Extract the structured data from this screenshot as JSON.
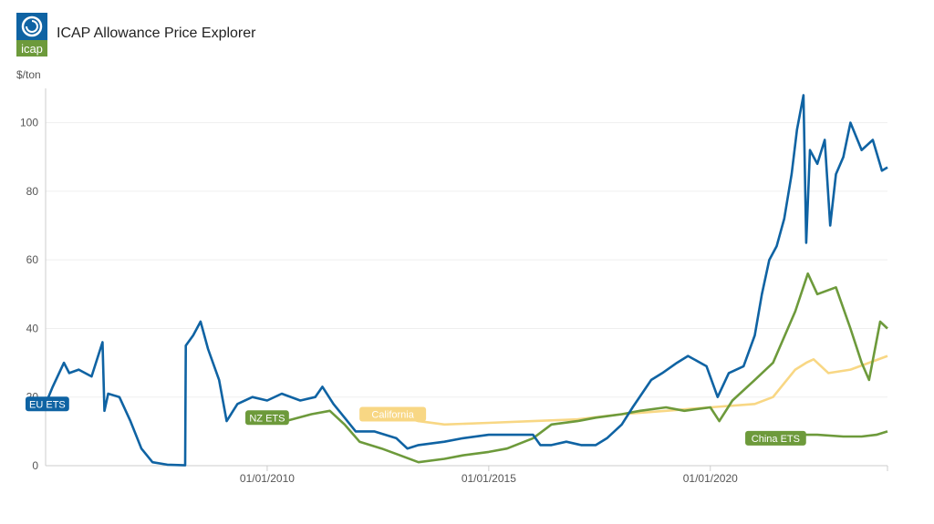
{
  "header": {
    "title": "ICAP Allowance Price Explorer",
    "logo_text": "icap"
  },
  "colors": {
    "eu": "#0f63a3",
    "nz": "#6d9a3b",
    "california": "#f8d784",
    "china": "#6d9a3b"
  },
  "chart_data": {
    "type": "line",
    "title": "ICAP Allowance Price Explorer",
    "ylabel": "$/ton",
    "xlabel": "",
    "ylim": [
      0,
      110
    ],
    "xlim": [
      "2005-01-01",
      "2023-12-31"
    ],
    "y_ticks": [
      0,
      20,
      40,
      60,
      80,
      100
    ],
    "x_ticks": [
      "01/01/2010",
      "01/01/2015",
      "01/01/2020"
    ],
    "grid": true,
    "series": [
      {
        "name": "EU ETS",
        "color": "#0f63a3",
        "points": [
          [
            "2005-01-01",
            18
          ],
          [
            "2005-03-01",
            23
          ],
          [
            "2005-06-01",
            30
          ],
          [
            "2005-07-15",
            27
          ],
          [
            "2005-10-01",
            28
          ],
          [
            "2006-01-15",
            26
          ],
          [
            "2006-04-15",
            36
          ],
          [
            "2006-05-01",
            16
          ],
          [
            "2006-06-01",
            21
          ],
          [
            "2006-09-01",
            20
          ],
          [
            "2006-12-01",
            13
          ],
          [
            "2007-03-01",
            5
          ],
          [
            "2007-06-01",
            1
          ],
          [
            "2007-10-01",
            0.3
          ],
          [
            "2008-02-25",
            0.1
          ],
          [
            "2008-03-01",
            35
          ],
          [
            "2008-05-01",
            38
          ],
          [
            "2008-07-01",
            42
          ],
          [
            "2008-09-01",
            34
          ],
          [
            "2008-12-01",
            25
          ],
          [
            "2009-02-01",
            13
          ],
          [
            "2009-05-01",
            18
          ],
          [
            "2009-09-01",
            20
          ],
          [
            "2010-01-01",
            19
          ],
          [
            "2010-05-01",
            21
          ],
          [
            "2010-10-01",
            19
          ],
          [
            "2011-02-01",
            20
          ],
          [
            "2011-04-01",
            23
          ],
          [
            "2011-07-01",
            18
          ],
          [
            "2011-10-01",
            14
          ],
          [
            "2012-01-01",
            10
          ],
          [
            "2012-06-01",
            10
          ],
          [
            "2012-12-01",
            8
          ],
          [
            "2013-03-01",
            5
          ],
          [
            "2013-06-01",
            6
          ],
          [
            "2014-01-01",
            7
          ],
          [
            "2014-06-01",
            8
          ],
          [
            "2015-01-01",
            9
          ],
          [
            "2015-06-01",
            9
          ],
          [
            "2016-01-01",
            9
          ],
          [
            "2016-03-01",
            6
          ],
          [
            "2016-06-01",
            6
          ],
          [
            "2016-10-01",
            7
          ],
          [
            "2017-02-01",
            6
          ],
          [
            "2017-06-01",
            6
          ],
          [
            "2017-09-01",
            8
          ],
          [
            "2018-01-01",
            12
          ],
          [
            "2018-04-01",
            17
          ],
          [
            "2018-09-01",
            25
          ],
          [
            "2018-12-01",
            27
          ],
          [
            "2019-04-01",
            30
          ],
          [
            "2019-07-01",
            32
          ],
          [
            "2019-12-01",
            29
          ],
          [
            "2020-03-01",
            20
          ],
          [
            "2020-06-01",
            27
          ],
          [
            "2020-10-01",
            29
          ],
          [
            "2021-01-01",
            38
          ],
          [
            "2021-03-01",
            50
          ],
          [
            "2021-05-01",
            60
          ],
          [
            "2021-07-01",
            64
          ],
          [
            "2021-09-01",
            72
          ],
          [
            "2021-11-01",
            85
          ],
          [
            "2021-12-15",
            98
          ],
          [
            "2022-02-07",
            108
          ],
          [
            "2022-03-01",
            65
          ],
          [
            "2022-04-01",
            92
          ],
          [
            "2022-06-01",
            88
          ],
          [
            "2022-08-01",
            95
          ],
          [
            "2022-09-15",
            70
          ],
          [
            "2022-11-01",
            85
          ],
          [
            "2023-01-01",
            90
          ],
          [
            "2023-03-01",
            100
          ],
          [
            "2023-06-01",
            92
          ],
          [
            "2023-09-01",
            95
          ],
          [
            "2023-11-15",
            86
          ],
          [
            "2023-12-31",
            87
          ]
        ]
      },
      {
        "name": "NZ ETS",
        "color": "#6d9a3b",
        "points": [
          [
            "2010-01-01",
            14
          ],
          [
            "2010-06-01",
            13
          ],
          [
            "2011-01-01",
            15
          ],
          [
            "2011-06-01",
            16
          ],
          [
            "2011-10-01",
            12
          ],
          [
            "2012-02-01",
            7
          ],
          [
            "2012-08-01",
            5
          ],
          [
            "2013-01-01",
            3
          ],
          [
            "2013-06-01",
            1
          ],
          [
            "2014-01-01",
            2
          ],
          [
            "2014-06-01",
            3
          ],
          [
            "2015-01-01",
            4
          ],
          [
            "2015-06-01",
            5
          ],
          [
            "2016-01-01",
            8
          ],
          [
            "2016-06-01",
            12
          ],
          [
            "2017-01-01",
            13
          ],
          [
            "2017-06-01",
            14
          ],
          [
            "2018-01-01",
            15
          ],
          [
            "2018-06-01",
            16
          ],
          [
            "2019-01-01",
            17
          ],
          [
            "2019-06-01",
            16
          ],
          [
            "2020-01-01",
            17
          ],
          [
            "2020-03-15",
            13
          ],
          [
            "2020-07-01",
            19
          ],
          [
            "2021-01-01",
            25
          ],
          [
            "2021-06-01",
            30
          ],
          [
            "2021-12-01",
            45
          ],
          [
            "2022-03-15",
            56
          ],
          [
            "2022-06-01",
            50
          ],
          [
            "2022-11-01",
            52
          ],
          [
            "2023-03-01",
            40
          ],
          [
            "2023-06-01",
            30
          ],
          [
            "2023-08-01",
            25
          ],
          [
            "2023-11-01",
            42
          ],
          [
            "2023-12-31",
            40
          ]
        ]
      },
      {
        "name": "California",
        "color": "#f8d784",
        "points": [
          [
            "2012-11-01",
            15
          ],
          [
            "2013-06-01",
            13
          ],
          [
            "2014-01-01",
            12
          ],
          [
            "2015-01-01",
            12.5
          ],
          [
            "2016-01-01",
            13
          ],
          [
            "2017-01-01",
            13.5
          ],
          [
            "2018-01-01",
            15
          ],
          [
            "2019-01-01",
            16
          ],
          [
            "2020-01-01",
            17
          ],
          [
            "2021-01-01",
            18
          ],
          [
            "2021-06-01",
            20
          ],
          [
            "2021-12-01",
            28
          ],
          [
            "2022-03-01",
            30
          ],
          [
            "2022-05-01",
            31
          ],
          [
            "2022-09-01",
            27
          ],
          [
            "2023-03-01",
            28
          ],
          [
            "2023-08-01",
            30
          ],
          [
            "2023-12-31",
            32
          ]
        ]
      },
      {
        "name": "China ETS",
        "color": "#6d9a3b",
        "points": [
          [
            "2021-07-15",
            8
          ],
          [
            "2022-01-01",
            9
          ],
          [
            "2022-06-01",
            9
          ],
          [
            "2023-01-01",
            8.5
          ],
          [
            "2023-06-01",
            8.5
          ],
          [
            "2023-10-01",
            9
          ],
          [
            "2023-12-31",
            10
          ]
        ]
      }
    ],
    "labels": [
      {
        "series": "EU ETS",
        "text": "EU ETS"
      },
      {
        "series": "NZ ETS",
        "text": "NZ ETS"
      },
      {
        "series": "California",
        "text": "California"
      },
      {
        "series": "China ETS",
        "text": "China ETS"
      }
    ]
  }
}
